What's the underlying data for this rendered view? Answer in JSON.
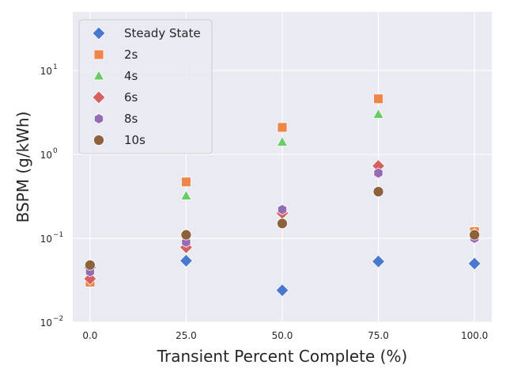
{
  "chart_data": {
    "type": "scatter",
    "xlabel": "Transient Percent Complete (%)",
    "ylabel": "BSPM (g/kWh)",
    "x_scale": "linear",
    "y_scale": "log",
    "xlim": [
      -4.5,
      104.5
    ],
    "ylim": [
      0.01,
      50
    ],
    "x_ticks": [
      0.0,
      25.0,
      50.0,
      75.0,
      100.0
    ],
    "x_tick_labels": [
      "0.0",
      "25.0",
      "50.0",
      "75.0",
      "100.0"
    ],
    "y_ticks": [
      0.01,
      0.1,
      1,
      10
    ],
    "y_tick_labels": [
      {
        "base": "10",
        "exp": "−2"
      },
      {
        "base": "10",
        "exp": "−1"
      },
      {
        "base": "10",
        "exp": "0"
      },
      {
        "base": "10",
        "exp": "1"
      }
    ],
    "grid": true,
    "legend_position": "top-left",
    "background": "#EAEAF2",
    "series": [
      {
        "name": "Steady State",
        "marker": "diamond",
        "color": "#4878D0",
        "x": [
          0,
          25,
          50,
          75,
          100
        ],
        "y": [
          0.045,
          0.054,
          0.024,
          0.053,
          0.05
        ]
      },
      {
        "name": "2s",
        "marker": "square",
        "color": "#EE854A",
        "x": [
          0,
          25,
          50,
          75,
          100
        ],
        "y": [
          0.03,
          0.47,
          2.1,
          4.6,
          0.12
        ]
      },
      {
        "name": "4s",
        "marker": "triangle",
        "color": "#6ACC64",
        "x": [
          0,
          25,
          50,
          75,
          100
        ],
        "y": [
          0.04,
          0.32,
          1.4,
          3.0,
          0.11
        ]
      },
      {
        "name": "6s",
        "marker": "diamond",
        "color": "#D65F5F",
        "x": [
          0,
          25,
          50,
          75,
          100
        ],
        "y": [
          0.033,
          0.078,
          0.2,
          0.73,
          0.11
        ]
      },
      {
        "name": "8s",
        "marker": "hexagon",
        "color": "#956CB4",
        "x": [
          0,
          25,
          50,
          75,
          100
        ],
        "y": [
          0.04,
          0.09,
          0.22,
          0.6,
          0.1
        ]
      },
      {
        "name": "10s",
        "marker": "circle",
        "color": "#8C613C",
        "x": [
          0,
          25,
          50,
          75,
          100
        ],
        "y": [
          0.048,
          0.11,
          0.15,
          0.36,
          0.11
        ]
      }
    ]
  }
}
